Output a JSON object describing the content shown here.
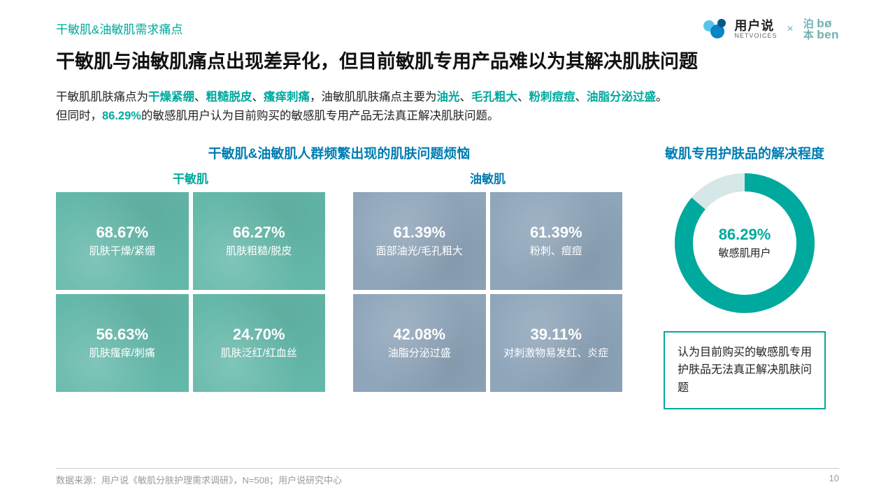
{
  "page_number": "10",
  "header": {
    "subtitle": "干敏肌&油敏肌需求痛点",
    "title": "干敏肌与油敏肌痛点出现差异化，但目前敏肌专用产品难以为其解决肌肤问题"
  },
  "paragraph": {
    "p1_pre": "干敏肌肌肤痛点为",
    "p1_h1": "干燥紧绷",
    "p1_sep": "、",
    "p1_h2": "粗糙脱皮",
    "p1_h3": "瘙痒刺痛",
    "p1_mid": "，油敏肌肌肤痛点主要为",
    "p1_h4": "油光",
    "p1_h5": "毛孔粗大",
    "p1_h6": "粉刺痘痘",
    "p1_h7": "油脂分泌过盛",
    "p1_end": "。",
    "p2_pre": "但同时，",
    "p2_pct": "86.29%",
    "p2_post": "的敏感肌用户认为目前购买的敏感肌专用产品无法真正解决肌肤问题。"
  },
  "left_section": {
    "title": "干敏肌&油敏肌人群频繁出现的肌肤问题烦恼",
    "dry_label": "干敏肌",
    "oily_label": "油敏肌",
    "dry_color": "#63b8a9",
    "oily_color": "#8ea5ba",
    "dry_tiles": [
      {
        "pct": "68.67%",
        "label": "肌肤干燥/紧绷"
      },
      {
        "pct": "66.27%",
        "label": "肌肤粗糙/脱皮"
      },
      {
        "pct": "56.63%",
        "label": "肌肤瘙痒/刺痛"
      },
      {
        "pct": "24.70%",
        "label": "肌肤泛红/红血丝"
      }
    ],
    "oily_tiles": [
      {
        "pct": "61.39%",
        "label": "面部油光/毛孔粗大"
      },
      {
        "pct": "61.39%",
        "label": "粉刺、痘痘"
      },
      {
        "pct": "42.08%",
        "label": "油脂分泌过盛"
      },
      {
        "pct": "39.11%",
        "label": "对刺激物易发红、炎症"
      }
    ]
  },
  "right_section": {
    "title": "敏肌专用护肤品的解决程度",
    "donut": {
      "percent_value": 86.29,
      "percent_label": "86.29%",
      "sub_label": "敏感肌用户",
      "ring_color": "#00a99d",
      "track_color": "#d6e7e7"
    },
    "callout": "认为目前购买的敏感肌专用护肤品无法真正解决肌肤问题"
  },
  "logos": {
    "netvoices_cn": "用户说",
    "netvoices_en": "NETVOICES",
    "x": "×",
    "boben_cn1": "泊",
    "boben_cn2": "本",
    "boben_en1": "bø",
    "boben_en2": "ben"
  },
  "footer": {
    "source": "数据来源：用户说《敏肌分肤护理需求调研》，N=508；用户说研究中心"
  },
  "colors": {
    "accent_teal": "#00a99d",
    "accent_blue": "#007db2"
  }
}
